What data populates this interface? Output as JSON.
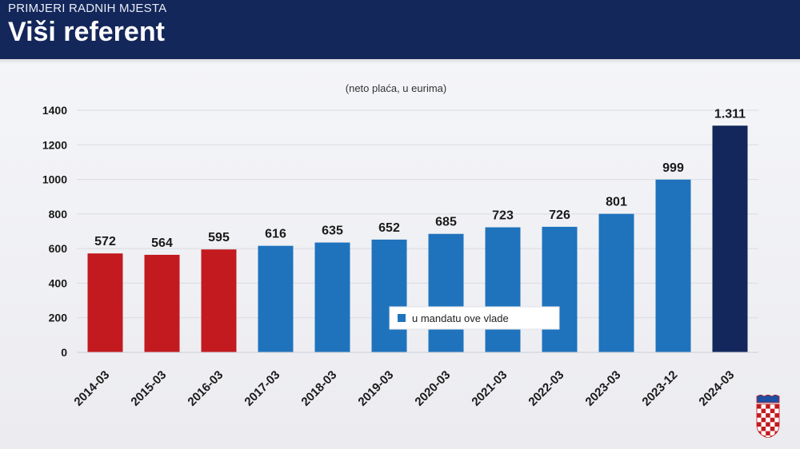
{
  "header": {
    "kicker": "PRIMJERI RADNIH MJESTA",
    "title": "Viši referent"
  },
  "chart_data": {
    "type": "bar",
    "subtitle": "(neto plaća, u eurima)",
    "categories": [
      "2014-03",
      "2015-03",
      "2016-03",
      "2017-03",
      "2018-03",
      "2019-03",
      "2020-03",
      "2021-03",
      "2022-03",
      "2023-03",
      "2023-12",
      "2024-03"
    ],
    "values": [
      572,
      564,
      595,
      616,
      635,
      652,
      685,
      723,
      726,
      801,
      999,
      1311
    ],
    "value_labels": [
      "572",
      "564",
      "595",
      "616",
      "635",
      "652",
      "685",
      "723",
      "726",
      "801",
      "999",
      "1.311"
    ],
    "bar_colors": [
      "#c21a1f",
      "#c21a1f",
      "#c21a1f",
      "#1f73bd",
      "#1f73bd",
      "#1f73bd",
      "#1f73bd",
      "#1f73bd",
      "#1f73bd",
      "#1f73bd",
      "#1f73bd",
      "#13275c"
    ],
    "ylim": [
      0,
      1400
    ],
    "yticks": [
      0,
      200,
      400,
      600,
      800,
      1000,
      1200,
      1400
    ],
    "grid": true,
    "legend": {
      "label": "u mandatu ove vlade",
      "color": "#1f73bd",
      "placement": "bottom-center"
    }
  },
  "colors": {
    "header_bg": "#14275a",
    "red": "#c21a1f",
    "blue": "#1f73bd",
    "navy": "#13275c"
  },
  "icons": {
    "coat_of_arms": "croatian-coat-of-arms-icon"
  }
}
